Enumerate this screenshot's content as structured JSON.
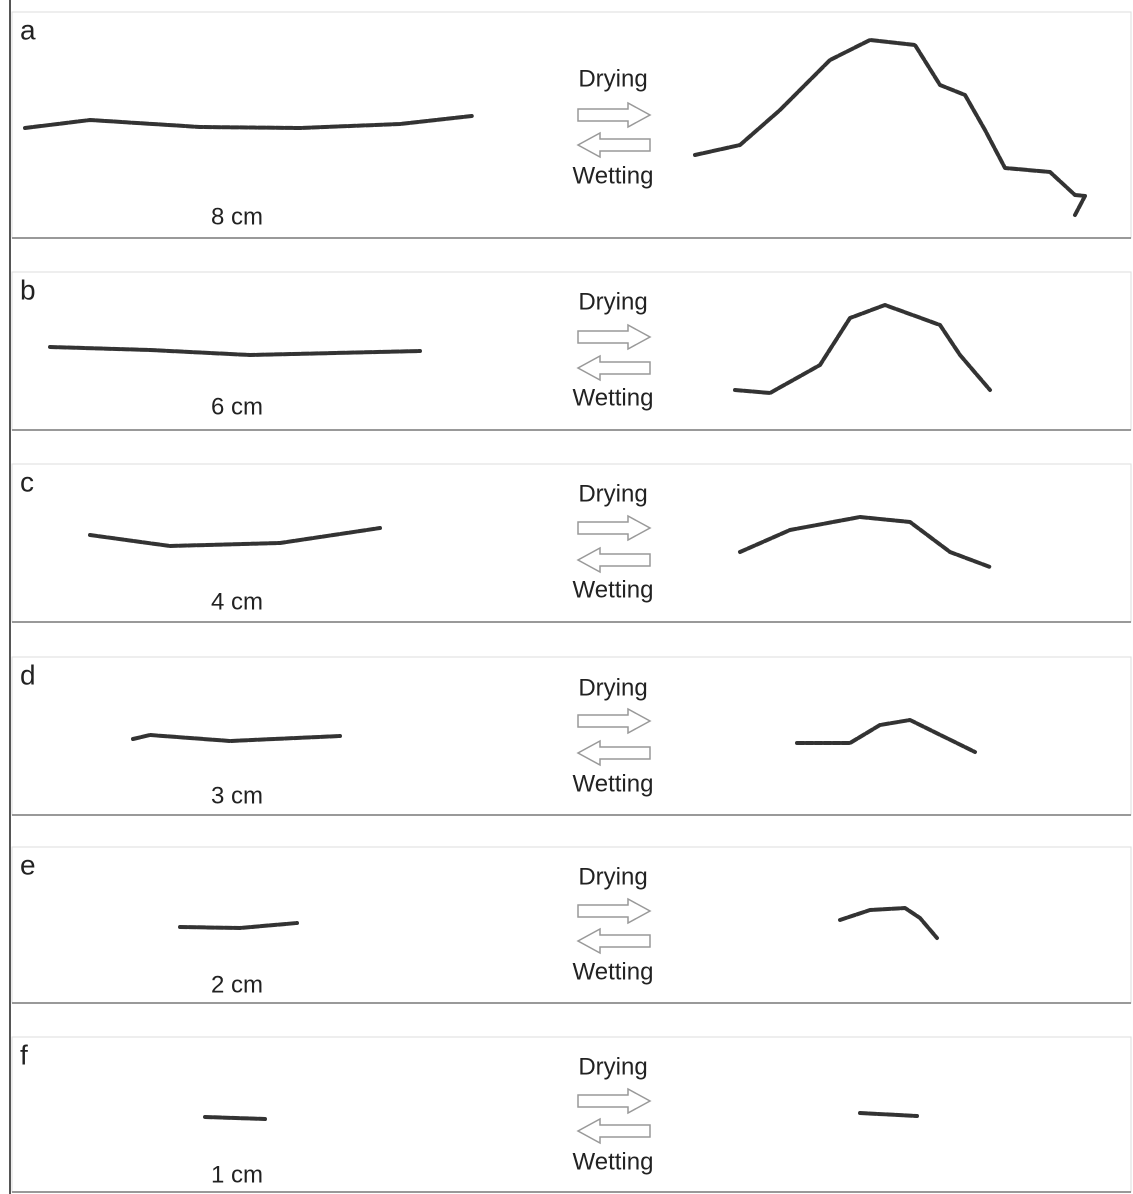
{
  "panels": [
    {
      "label": "a",
      "length": "8 cm",
      "drying": "Drying",
      "wetting": "Wetting"
    },
    {
      "label": "b",
      "length": "6 cm",
      "drying": "Drying",
      "wetting": "Wetting"
    },
    {
      "label": "c",
      "length": "4 cm",
      "drying": "Drying",
      "wetting": "Wetting"
    },
    {
      "label": "d",
      "length": "3 cm",
      "drying": "Drying",
      "wetting": "Wetting"
    },
    {
      "label": "e",
      "length": "2 cm",
      "drying": "Drying",
      "wetting": "Wetting"
    },
    {
      "label": "f",
      "length": "1 cm",
      "drying": "Drying",
      "wetting": "Wetting"
    }
  ]
}
